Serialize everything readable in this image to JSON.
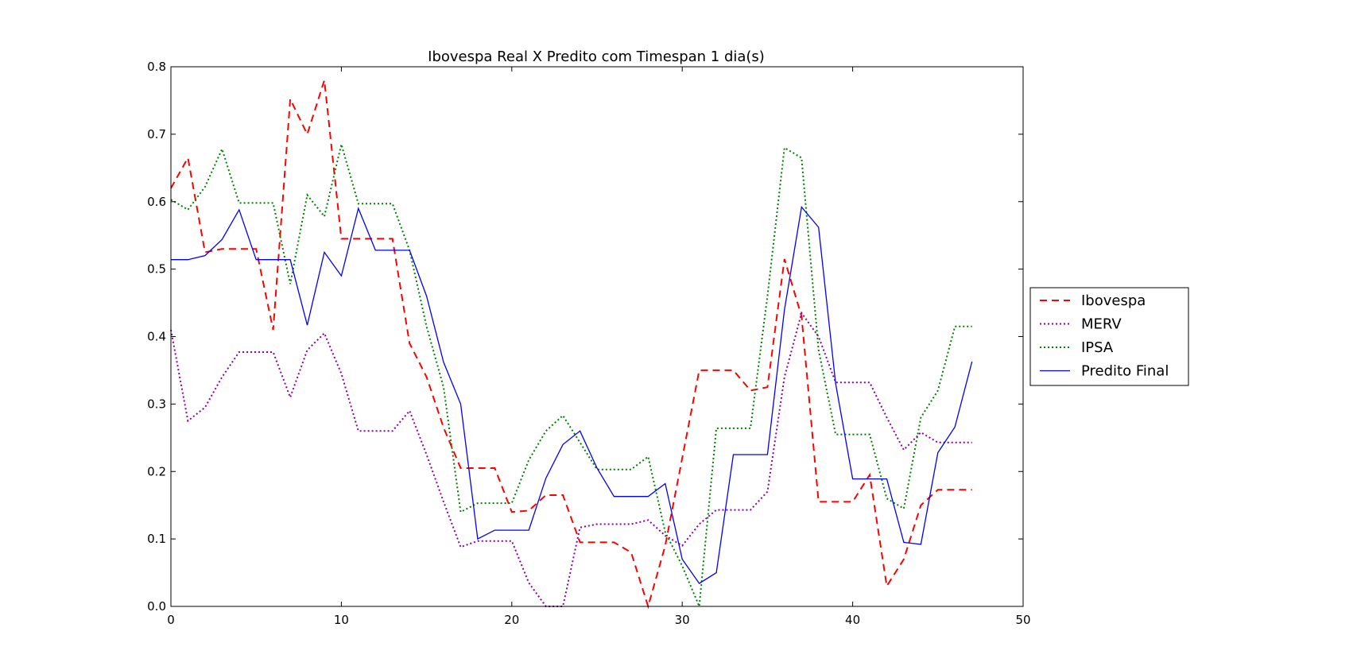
{
  "chart_data": {
    "type": "line",
    "title": "Ibovespa Real X Predito com Timespan 1 dia(s)",
    "xlabel": "",
    "ylabel": "",
    "xlim": [
      0,
      50
    ],
    "ylim": [
      0,
      0.8
    ],
    "xticks": [
      0,
      10,
      20,
      30,
      40,
      50
    ],
    "yticks": [
      0.0,
      0.1,
      0.2,
      0.3,
      0.4,
      0.5,
      0.6,
      0.7,
      0.8
    ],
    "xtick_labels": [
      "0",
      "10",
      "20",
      "30",
      "40",
      "50"
    ],
    "ytick_labels": [
      "0.0",
      "0.1",
      "0.2",
      "0.3",
      "0.4",
      "0.5",
      "0.6",
      "0.7",
      "0.8"
    ],
    "grid": false,
    "legend_position": "outside-right",
    "x": [
      0,
      1,
      2,
      3,
      4,
      5,
      6,
      7,
      8,
      9,
      10,
      11,
      12,
      13,
      14,
      15,
      16,
      17,
      18,
      19,
      20,
      21,
      22,
      23,
      24,
      25,
      26,
      27,
      28,
      29,
      30,
      31,
      32,
      33,
      34,
      35,
      36,
      37,
      38,
      39,
      40,
      41,
      42,
      43,
      44,
      45,
      46,
      47
    ],
    "series": [
      {
        "name": "Ibovespa",
        "color": "#ff0000",
        "style": "dashed",
        "values": [
          0.62,
          0.665,
          0.525,
          0.53,
          0.53,
          0.53,
          0.41,
          0.752,
          0.7,
          0.78,
          0.545,
          0.545,
          0.545,
          0.545,
          0.39,
          0.34,
          0.265,
          0.205,
          0.205,
          0.205,
          0.14,
          0.142,
          0.165,
          0.165,
          0.095,
          0.095,
          0.095,
          0.08,
          0.0,
          0.09,
          0.22,
          0.35,
          0.35,
          0.35,
          0.32,
          0.325,
          0.515,
          0.43,
          0.155,
          0.155,
          0.155,
          0.195,
          0.03,
          0.07,
          0.15,
          0.173,
          0.173,
          0.173
        ]
      },
      {
        "name": "MERV",
        "color": "#8b00a8",
        "style": "dotted",
        "values": [
          0.41,
          0.275,
          0.295,
          0.34,
          0.377,
          0.377,
          0.377,
          0.31,
          0.38,
          0.405,
          0.345,
          0.26,
          0.26,
          0.26,
          0.29,
          0.225,
          0.155,
          0.088,
          0.097,
          0.097,
          0.097,
          0.035,
          0.0,
          0.0,
          0.117,
          0.122,
          0.122,
          0.122,
          0.128,
          0.105,
          0.09,
          0.122,
          0.143,
          0.143,
          0.143,
          0.17,
          0.34,
          0.435,
          0.4,
          0.332,
          0.332,
          0.332,
          0.28,
          0.232,
          0.258,
          0.243,
          0.243,
          0.243
        ]
      },
      {
        "name": "IPSA",
        "color": "#008000",
        "style": "dotted",
        "values": [
          0.603,
          0.588,
          0.622,
          0.678,
          0.598,
          0.598,
          0.598,
          0.478,
          0.61,
          0.578,
          0.685,
          0.597,
          0.597,
          0.597,
          0.528,
          0.415,
          0.325,
          0.14,
          0.153,
          0.153,
          0.153,
          0.217,
          0.26,
          0.283,
          0.243,
          0.203,
          0.203,
          0.203,
          0.222,
          0.11,
          0.06,
          0.0,
          0.264,
          0.264,
          0.264,
          0.46,
          0.68,
          0.665,
          0.38,
          0.255,
          0.255,
          0.255,
          0.16,
          0.145,
          0.28,
          0.32,
          0.415,
          0.415
        ]
      },
      {
        "name": "Predito Final",
        "color": "#0000ff",
        "style": "solid",
        "values": [
          0.514,
          0.514,
          0.52,
          0.544,
          0.588,
          0.514,
          0.514,
          0.514,
          0.417,
          0.525,
          0.49,
          0.59,
          0.528,
          0.528,
          0.528,
          0.46,
          0.362,
          0.3,
          0.1,
          0.113,
          0.113,
          0.113,
          0.19,
          0.24,
          0.26,
          0.205,
          0.163,
          0.163,
          0.163,
          0.182,
          0.07,
          0.034,
          0.05,
          0.225,
          0.225,
          0.225,
          0.44,
          0.592,
          0.562,
          0.33,
          0.189,
          0.189,
          0.189,
          0.095,
          0.092,
          0.228,
          0.266,
          0.363
        ]
      }
    ]
  }
}
